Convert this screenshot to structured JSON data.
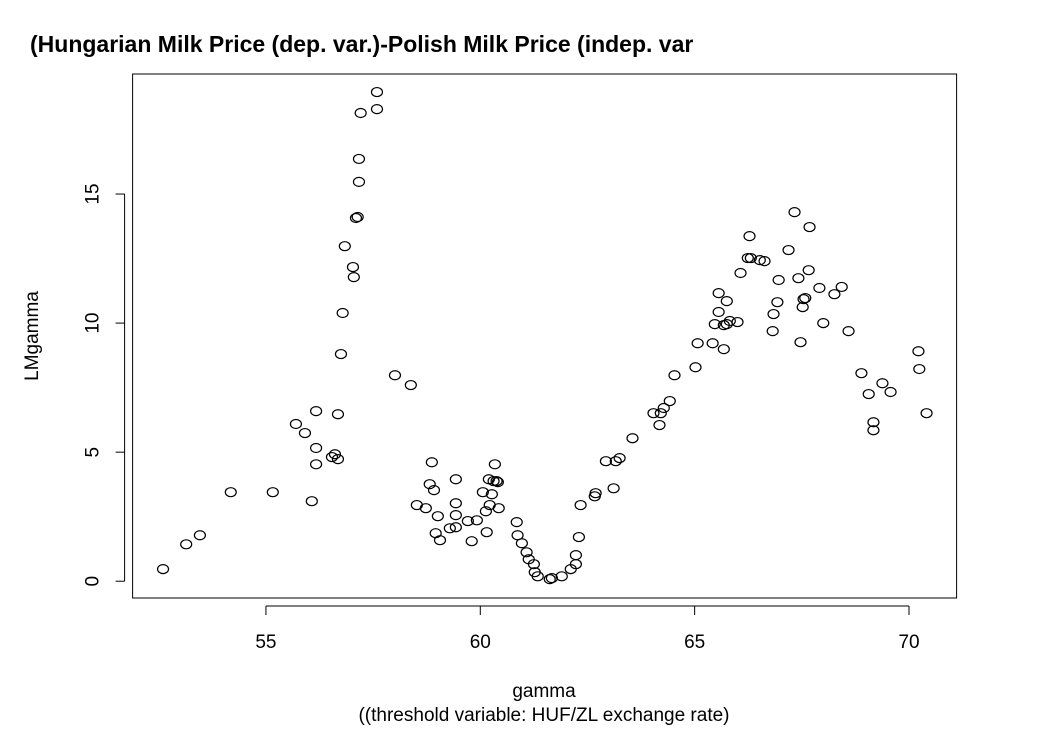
{
  "chart_data": {
    "type": "scatter",
    "title": "(Hungarian Milk Price (dep. var.)-Polish Milk Price (indep. var",
    "x_label": "gamma",
    "subtitle": "((threshold variable: HUF/ZL exchange rate)",
    "y_label": "LMgamma",
    "xlim": [
      51.89,
      71.11
    ],
    "ylim": [
      -0.65,
      19.65
    ],
    "xticks": [
      55,
      60,
      65,
      70
    ],
    "yticks": [
      0,
      5,
      10,
      15
    ],
    "color": "#000000",
    "x": [
      52.6,
      53.14,
      53.46,
      54.18,
      55.16,
      55.7,
      55.91,
      56.07,
      56.17,
      56.17,
      56.17,
      56.54,
      56.61,
      56.68,
      56.68,
      56.75,
      56.79,
      56.84,
      57.03,
      57.05,
      57.1,
      57.14,
      57.17,
      57.17,
      57.21,
      57.59,
      57.59,
      58.01,
      58.38,
      58.52,
      58.73,
      58.82,
      58.87,
      58.92,
      58.96,
      59.01,
      59.06,
      59.29,
      59.43,
      59.43,
      59.43,
      59.43,
      59.71,
      59.8,
      59.92,
      60.06,
      60.13,
      60.15,
      60.2,
      60.22,
      60.27,
      60.31,
      60.34,
      60.38,
      60.41,
      60.43,
      60.85,
      60.87,
      60.97,
      61.08,
      61.13,
      61.25,
      61.27,
      61.34,
      61.62,
      61.67,
      61.9,
      62.11,
      62.23,
      62.23,
      62.3,
      62.34,
      62.67,
      62.69,
      62.93,
      63.11,
      63.16,
      63.25,
      63.55,
      64.04,
      64.18,
      64.21,
      64.28,
      64.42,
      64.53,
      65.02,
      65.07,
      65.42,
      65.47,
      65.56,
      65.56,
      65.68,
      65.68,
      65.75,
      65.75,
      65.82,
      66.0,
      66.07,
      66.24,
      66.28,
      66.31,
      66.52,
      66.63,
      66.82,
      66.84,
      66.93,
      66.96,
      67.19,
      67.33,
      67.42,
      67.47,
      67.52,
      67.54,
      67.58,
      67.66,
      67.68,
      67.91,
      68.0,
      68.26,
      68.43,
      68.59,
      68.89,
      69.06,
      69.17,
      69.17,
      69.38,
      69.57,
      70.22,
      70.24,
      70.41
    ],
    "values": [
      0.47,
      1.43,
      1.78,
      3.45,
      3.45,
      6.09,
      5.74,
      3.1,
      6.59,
      5.16,
      4.53,
      4.81,
      4.92,
      4.73,
      6.47,
      8.8,
      10.39,
      12.98,
      12.17,
      11.78,
      14.07,
      14.11,
      15.47,
      16.36,
      18.14,
      18.29,
      18.95,
      7.98,
      7.6,
      2.95,
      2.83,
      3.76,
      4.61,
      3.53,
      1.86,
      2.52,
      1.59,
      2.05,
      2.09,
      2.56,
      3.02,
      3.95,
      2.33,
      1.55,
      2.36,
      3.45,
      2.71,
      1.9,
      3.95,
      2.95,
      3.37,
      3.88,
      4.53,
      3.88,
      3.84,
      2.83,
      2.29,
      1.78,
      1.47,
      1.12,
      0.85,
      0.66,
      0.35,
      0.19,
      0.08,
      0.12,
      0.19,
      0.47,
      0.66,
      1.01,
      1.71,
      2.95,
      3.29,
      3.41,
      4.65,
      3.6,
      4.65,
      4.77,
      5.54,
      6.51,
      6.05,
      6.51,
      6.71,
      6.98,
      7.98,
      8.29,
      9.22,
      9.22,
      9.96,
      10.43,
      11.16,
      8.99,
      9.92,
      10.85,
      9.96,
      10.08,
      10.04,
      11.94,
      12.52,
      13.37,
      12.52,
      12.44,
      12.4,
      9.69,
      10.35,
      10.81,
      11.67,
      12.83,
      14.3,
      11.74,
      9.26,
      10.62,
      10.93,
      10.97,
      12.05,
      13.72,
      11.36,
      10.0,
      11.12,
      11.4,
      9.69,
      8.06,
      7.25,
      6.16,
      5.85,
      7.67,
      7.33,
      8.91,
      8.22,
      6.51
    ]
  }
}
